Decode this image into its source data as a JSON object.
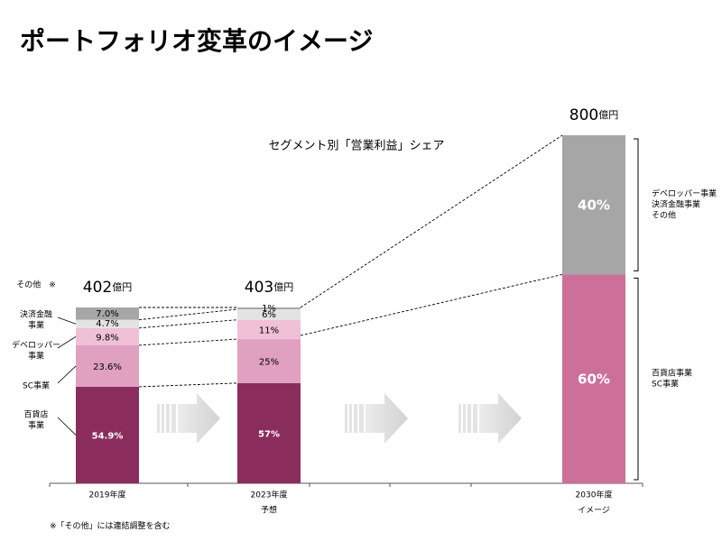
{
  "page": {
    "title": "ポートフォリオ変革のイメージ",
    "footnote": "※「その他」には連結調整を含む"
  },
  "chart_data": {
    "type": "bar",
    "subtitle": "セグメント別「営業利益」シェア",
    "categories": [
      "2019年度",
      "2023年度",
      "2030年度"
    ],
    "category_sublabels": [
      "",
      "予想",
      "イメージ"
    ],
    "totals": [
      {
        "value": "402",
        "unit": "億円"
      },
      {
        "value": "403",
        "unit": "億円"
      },
      {
        "value": "800",
        "unit": "億円"
      }
    ],
    "series": [
      {
        "name": "百貨店事業",
        "color": "#8b2d5c",
        "values": [
          54.9,
          57,
          null
        ],
        "labels": [
          "54.9%",
          "57%",
          ""
        ]
      },
      {
        "name": "SC事業",
        "color": "#e0a0c0",
        "values": [
          23.6,
          25,
          null
        ],
        "labels": [
          "23.6%",
          "25%",
          ""
        ]
      },
      {
        "name": "デベロッパー事業",
        "color": "#efc0d6",
        "values": [
          9.8,
          11,
          null
        ],
        "labels": [
          "9.8%",
          "11%",
          ""
        ]
      },
      {
        "name": "決済金融事業",
        "color": "#e3e3e3",
        "values": [
          4.7,
          6,
          null
        ],
        "labels": [
          "4.7%",
          "6%",
          ""
        ]
      },
      {
        "name": "その他",
        "color": "#a6a6a6",
        "values": [
          7.0,
          1,
          null
        ],
        "labels": [
          "7.0%",
          "1%",
          ""
        ]
      },
      {
        "name": "百貨店事業 SC事業",
        "color": "#cc7099",
        "values": [
          null,
          null,
          60
        ],
        "labels": [
          "",
          "",
          "60%"
        ]
      },
      {
        "name": "デベロッパー事業 決済金融事業 その他",
        "color": "#a6a6a6",
        "values": [
          null,
          null,
          40
        ],
        "labels": [
          "",
          "",
          "40%"
        ]
      }
    ],
    "left_legend": [
      "その他　※",
      "決済金融\n事業",
      "デベロッパー\n事業",
      "SC事業",
      "百貨店\n事業"
    ],
    "right_brackets": [
      {
        "label": "デベロッパー事業\n決済金融事業\nその他",
        "series_index": 6
      },
      {
        "label": "百貨店事業\nSC事業",
        "series_index": 5
      }
    ]
  }
}
